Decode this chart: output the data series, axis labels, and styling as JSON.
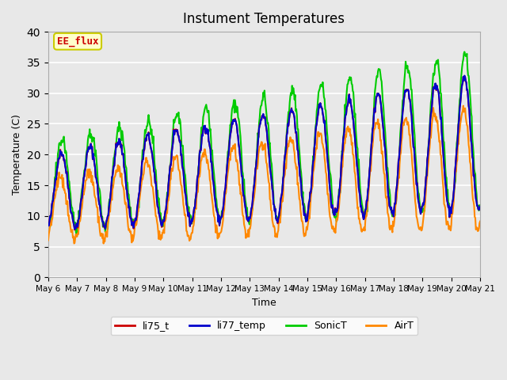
{
  "title": "Instument Temperatures",
  "xlabel": "Time",
  "ylabel": "Temperature (C)",
  "ylim": [
    0,
    40
  ],
  "yticks": [
    0,
    5,
    10,
    15,
    20,
    25,
    30,
    35,
    40
  ],
  "x_labels": [
    "May 6",
    "May 7",
    "May 8",
    "May 9",
    "May 10",
    "May 11",
    "May 12",
    "May 13",
    "May 14",
    "May 15",
    "May 16",
    "May 17",
    "May 18",
    "May 19",
    "May 20",
    "May 21"
  ],
  "series_colors": {
    "li75_t": "#cc0000",
    "li77_temp": "#0000cc",
    "SonicT": "#00cc00",
    "AirT": "#ff8800"
  },
  "annotation_text": "EE_flux",
  "annotation_color": "#cc0000",
  "annotation_bg": "#ffffcc",
  "annotation_border": "#cccc00",
  "bg_color": "#e8e8e8",
  "grid_color": "#ffffff",
  "linewidth": 1.5,
  "n_days": 15,
  "pts_per_day": 48
}
